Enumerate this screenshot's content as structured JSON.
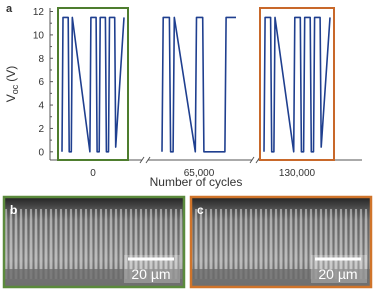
{
  "chart_data": {
    "type": "line",
    "panel_label": "a",
    "ylabel": {
      "main": "V",
      "sub": "oc",
      "unit": "(V)"
    },
    "xlabel": "Number of cycles",
    "categories": [
      "0",
      "65,000",
      "130,000"
    ],
    "color": "#1f3f8f",
    "ylim": [
      -0.7,
      12.3
    ],
    "yticks": [
      0,
      2,
      4,
      6,
      8,
      10,
      12
    ],
    "xlim": [
      0,
      60
    ],
    "segments": [
      {
        "x": [
          0,
          1,
          6,
          7,
          9,
          10,
          27,
          28,
          33,
          34,
          36,
          37,
          42,
          43,
          45,
          46,
          51,
          52,
          60
        ],
        "values": [
          0,
          11.5,
          11.5,
          0,
          0,
          11.5,
          0,
          11.5,
          11.5,
          0,
          0,
          11.5,
          11.5,
          0,
          0,
          11.5,
          11.5,
          0.4,
          11.5
        ]
      },
      {
        "x": [
          0,
          1,
          6,
          7,
          9,
          10,
          27,
          28,
          33,
          34,
          51,
          52,
          60
        ],
        "values": [
          0,
          11.5,
          11.5,
          0,
          0,
          11.5,
          0,
          11.5,
          11.5,
          0,
          0,
          11.5,
          11.5
        ]
      },
      {
        "x": [
          0,
          1,
          6,
          7,
          9,
          10,
          27,
          28,
          33,
          34,
          36,
          37,
          42,
          43,
          45,
          46,
          51,
          52,
          60
        ],
        "values": [
          0,
          11.5,
          11.5,
          0,
          0,
          11.5,
          0,
          11.5,
          11.5,
          0,
          0,
          11.5,
          11.5,
          0,
          0,
          11.5,
          11.5,
          0.4,
          11.5
        ]
      }
    ],
    "highlights": [
      {
        "segment": 0,
        "color": "#4e7d2e"
      },
      {
        "segment": 2,
        "color": "#c8682a"
      }
    ]
  },
  "images": [
    {
      "label": "b",
      "scale_bar": "20 µm",
      "border": "#5b8a3c"
    },
    {
      "label": "c",
      "scale_bar": "20 µm",
      "border": "#d0742a"
    }
  ]
}
